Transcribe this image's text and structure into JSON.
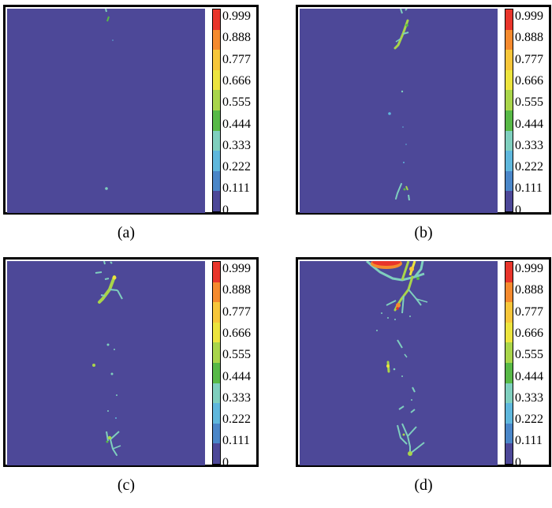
{
  "colorbar": {
    "ticks": [
      "0.999",
      "0.888",
      "0.777",
      "0.666",
      "0.555",
      "0.444",
      "0.333",
      "0.222",
      "0.111",
      "0"
    ],
    "colors": [
      "#e8352b",
      "#f58a2e",
      "#f7c63a",
      "#ece43e",
      "#a9d54a",
      "#58b947",
      "#7fcfbe",
      "#5fb7dc",
      "#4a86c8",
      "#4d4898"
    ]
  },
  "background_color": "#4d4898",
  "panels": [
    {
      "caption": "(a)"
    },
    {
      "caption": "(b)"
    },
    {
      "caption": "(c)"
    },
    {
      "caption": "(d)"
    }
  ]
}
